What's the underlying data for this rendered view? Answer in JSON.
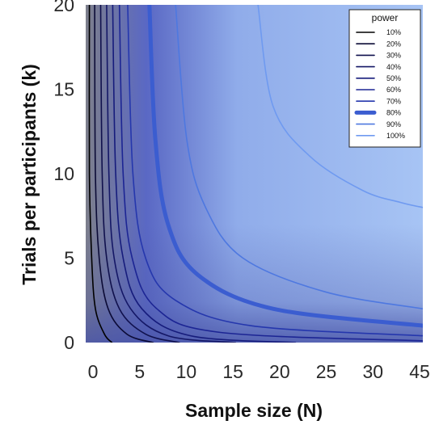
{
  "chart_data": {
    "type": "contour",
    "xlabel": "Sample size (N)",
    "ylabel": "Trials per participants (k)",
    "x_tick_labels": [
      "0",
      "5",
      "10",
      "15",
      "20",
      "25",
      "30",
      "45"
    ],
    "y_ticks": [
      0,
      5,
      10,
      15,
      20
    ],
    "xlim": [
      0,
      45
    ],
    "ylim": [
      0,
      20
    ],
    "legend": {
      "title": "power",
      "placement": "top-right",
      "levels": [
        "10%",
        "20%",
        "30%",
        "40%",
        "50%",
        "60%",
        "70%",
        "80%",
        "90%",
        "100%"
      ],
      "highlight": "80%"
    },
    "series": [
      {
        "name": "10%",
        "color": "#000000",
        "points": [
          [
            0.5,
            20
          ],
          [
            0.5,
            10
          ],
          [
            0.8,
            5
          ],
          [
            1.3,
            2
          ],
          [
            2.5,
            0.5
          ],
          [
            3.5,
            0
          ]
        ]
      },
      {
        "name": "20%",
        "color": "#0b0b36",
        "points": [
          [
            1.2,
            20
          ],
          [
            1.3,
            10
          ],
          [
            1.8,
            5
          ],
          [
            3,
            2
          ],
          [
            5.5,
            0.5
          ],
          [
            9,
            0
          ]
        ]
      },
      {
        "name": "30%",
        "color": "#10114d",
        "points": [
          [
            2,
            20
          ],
          [
            2.2,
            10
          ],
          [
            2.8,
            5
          ],
          [
            4.5,
            2
          ],
          [
            8,
            0.5
          ],
          [
            12.5,
            0
          ]
        ]
      },
      {
        "name": "40%",
        "color": "#141766",
        "points": [
          [
            2.8,
            20
          ],
          [
            3.1,
            10
          ],
          [
            3.8,
            5
          ],
          [
            6,
            2
          ],
          [
            11,
            0.4
          ],
          [
            20,
            0
          ]
        ]
      },
      {
        "name": "50%",
        "color": "#161c7c",
        "points": [
          [
            3.6,
            20
          ],
          [
            4,
            10
          ],
          [
            5,
            5
          ],
          [
            7.5,
            2
          ],
          [
            14,
            0.4
          ],
          [
            28,
            0
          ]
        ]
      },
      {
        "name": "60%",
        "color": "#1c2594",
        "points": [
          [
            4.5,
            20
          ],
          [
            5,
            10
          ],
          [
            6.2,
            5
          ],
          [
            9.5,
            2
          ],
          [
            18,
            0.6
          ],
          [
            45,
            0.1
          ]
        ]
      },
      {
        "name": "70%",
        "color": "#2537ad",
        "points": [
          [
            5.6,
            20
          ],
          [
            6.3,
            10
          ],
          [
            8,
            5
          ],
          [
            12,
            2.5
          ],
          [
            22,
            1
          ],
          [
            45,
            0.4
          ]
        ]
      },
      {
        "name": "80%",
        "color": "#3b5dd0",
        "points": [
          [
            8.5,
            20
          ],
          [
            9.3,
            12
          ],
          [
            11,
            7
          ],
          [
            15,
            4
          ],
          [
            25,
            2
          ],
          [
            45,
            1
          ]
        ]
      },
      {
        "name": "90%",
        "color": "#4e78e0",
        "points": [
          [
            12,
            20
          ],
          [
            13.5,
            12
          ],
          [
            16,
            8
          ],
          [
            21,
            5
          ],
          [
            32,
            3
          ],
          [
            45,
            2
          ]
        ]
      },
      {
        "name": "100%",
        "color": "#6f9af0",
        "points": [
          [
            23,
            20
          ],
          [
            25,
            14
          ],
          [
            30,
            11
          ],
          [
            37,
            9
          ],
          [
            42,
            8.3
          ],
          [
            45,
            8
          ]
        ]
      }
    ]
  }
}
